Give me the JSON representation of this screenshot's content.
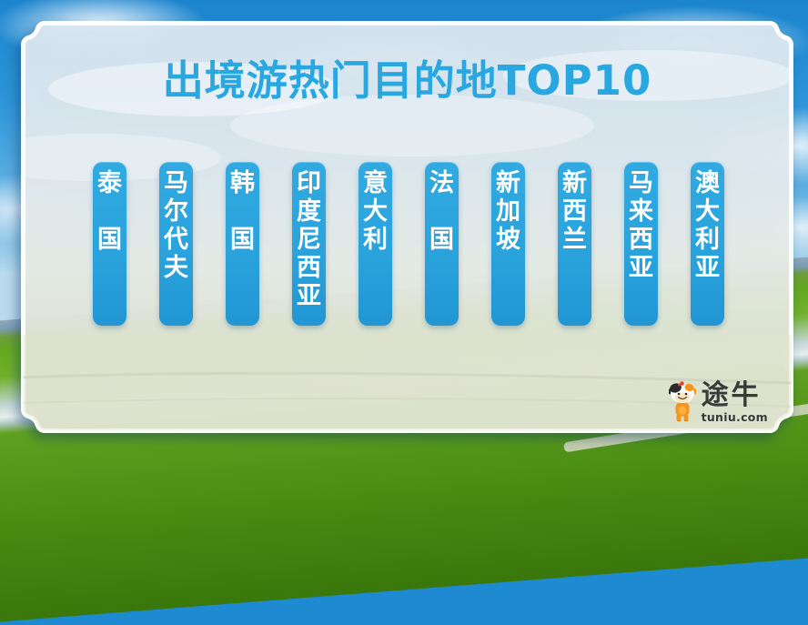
{
  "header": {
    "title": "出境游热门目的地TOP10"
  },
  "destinations": {
    "items": [
      "泰 国",
      "马尔代夫",
      "韩 国",
      "印度尼西亚",
      "意大利",
      "法 国",
      "新加坡",
      "新西兰",
      "马来西亚",
      "澳大利亚"
    ]
  },
  "brand": {
    "name": "途牛",
    "domain": "tuniu.com",
    "mascot": "tuniu-cow-icon"
  },
  "colors": {
    "title_blue": "#29a7e1",
    "pill_blue": "#2aa3dc",
    "pill_text_white": "#ffffff",
    "brand_orange": "#f7941e",
    "brand_text_dark": "#3a3a3a",
    "sky_blue": "#1e8ad2",
    "grass_green": "#55971a"
  },
  "chart_data": {
    "type": "table",
    "title": "出境游热门目的地TOP10",
    "ranked": true,
    "rows": [
      {
        "rank": 1,
        "destination": "泰国"
      },
      {
        "rank": 2,
        "destination": "马尔代夫"
      },
      {
        "rank": 3,
        "destination": "韩国"
      },
      {
        "rank": 4,
        "destination": "印度尼西亚"
      },
      {
        "rank": 5,
        "destination": "意大利"
      },
      {
        "rank": 6,
        "destination": "法国"
      },
      {
        "rank": 7,
        "destination": "新加坡"
      },
      {
        "rank": 8,
        "destination": "新西兰"
      },
      {
        "rank": 9,
        "destination": "马来西亚"
      },
      {
        "rank": 10,
        "destination": "澳大利亚"
      }
    ],
    "layout": "10 vertical blue pill labels arranged left-to-right in rank order on a pale card over a grassland-sky photo"
  }
}
